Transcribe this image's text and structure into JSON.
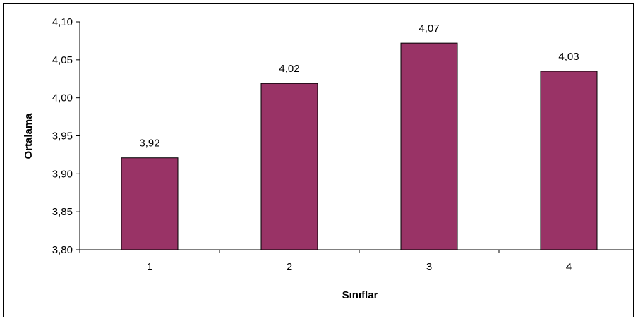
{
  "chart_data": {
    "type": "bar",
    "categories": [
      "1",
      "2",
      "3",
      "4"
    ],
    "values": [
      3.92,
      4.02,
      4.07,
      4.03
    ],
    "value_labels": [
      "3,92",
      "4,02",
      "4,07",
      "4,03"
    ],
    "bar_values": [
      3.921,
      4.019,
      4.072,
      4.035
    ],
    "xlabel": "Sınıflar",
    "ylabel": "Ortalama",
    "ylim": [
      3.8,
      4.1
    ],
    "yticks": [
      3.8,
      3.85,
      3.9,
      3.95,
      4.0,
      4.05,
      4.1
    ],
    "ytick_labels": [
      "3,80",
      "3,85",
      "3,90",
      "3,95",
      "4,00",
      "4,05",
      "4,10"
    ],
    "grid": false,
    "legend": "none",
    "bar_color": "#993366",
    "bar_edge_color": "#000000"
  }
}
